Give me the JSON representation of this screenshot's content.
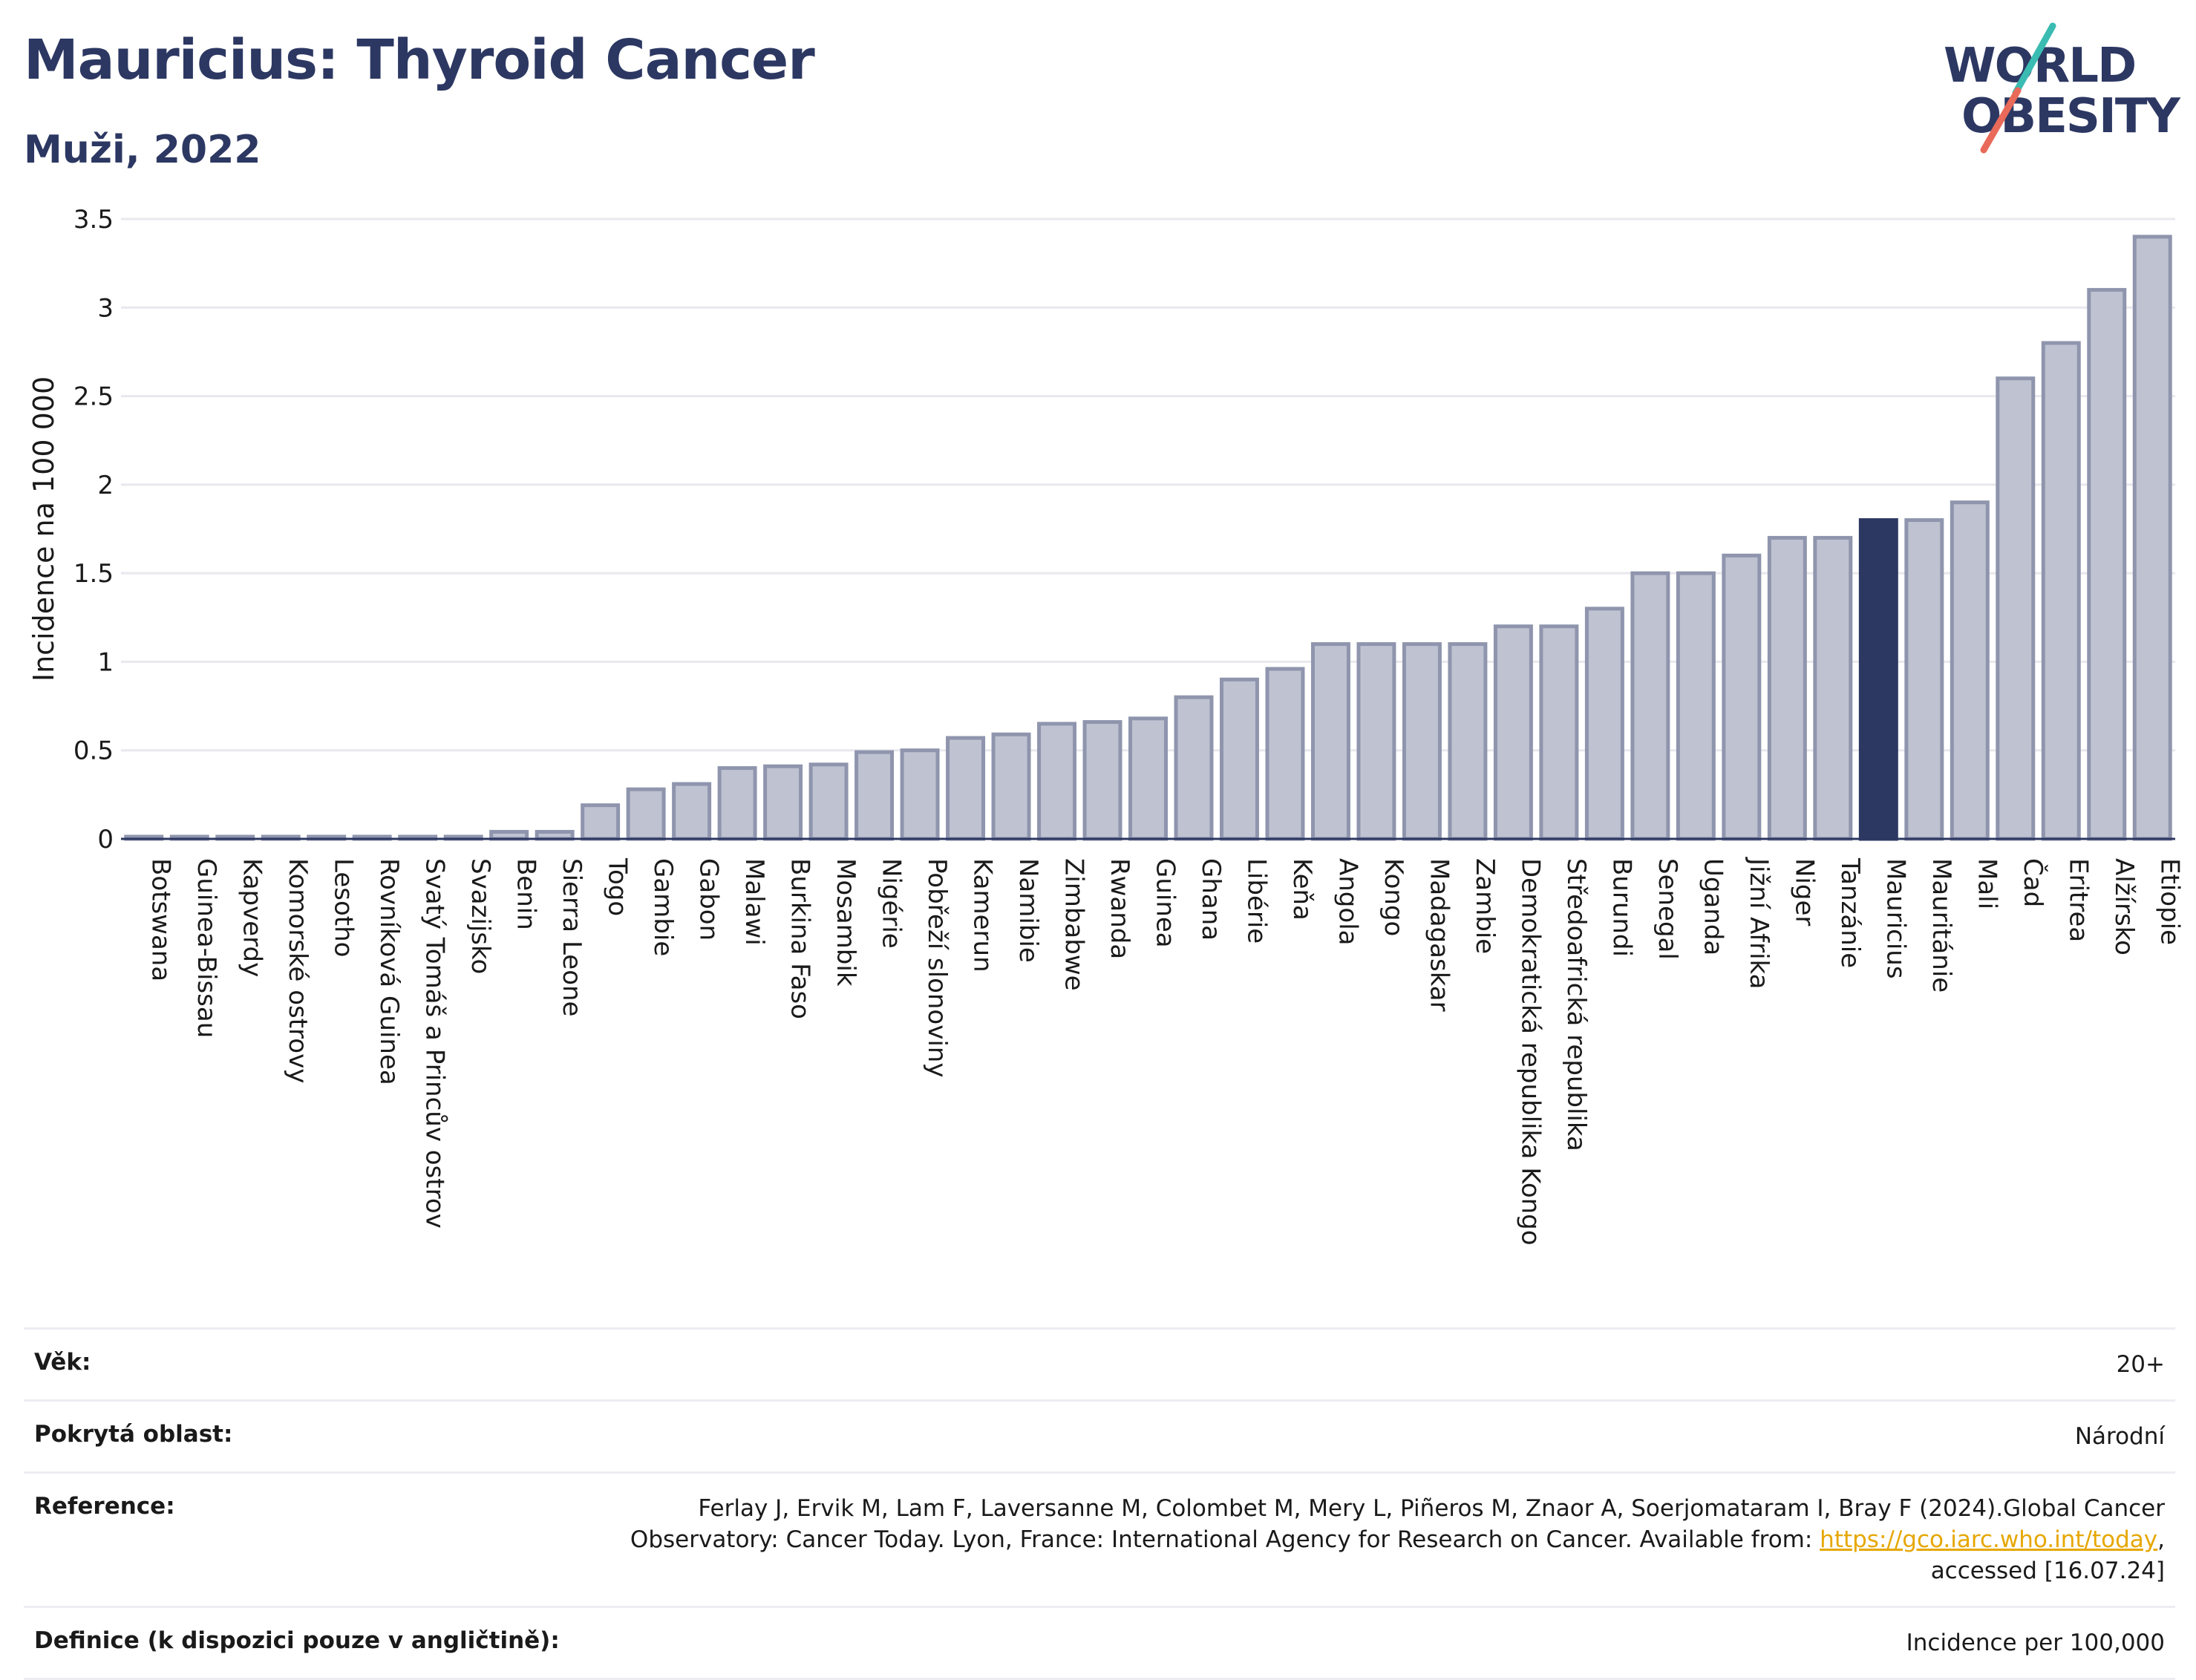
{
  "header": {
    "title": "Mauricius: Thyroid Cancer",
    "subtitle": "Muži, 2022"
  },
  "logo": {
    "line1": "WORLD",
    "line2": "OBESITY"
  },
  "chart_data": {
    "type": "bar",
    "ylabel": "Incidence na 100 000",
    "ylim": [
      0,
      3.5
    ],
    "yticks": [
      "0",
      "0.5",
      "1",
      "1.5",
      "2",
      "2.5",
      "3",
      "3.5"
    ],
    "ytick_values": [
      0,
      0.5,
      1,
      1.5,
      2,
      2.5,
      3,
      3.5
    ],
    "grid": true,
    "highlight": "Mauricius",
    "colors": {
      "bar": "#bec2d1",
      "bar_border": "#8f95ad",
      "highlight": "#2d3862",
      "grid": "#e8e8ee"
    },
    "categories": [
      "Botswana",
      "Guinea-Bissau",
      "Kapverdy",
      "Komorské ostrovy",
      "Lesotho",
      "Rovníková Guinea",
      "Svatý Tomáš a Princův ostrov",
      "Svazijsko",
      "Benin",
      "Sierra Leone",
      "Togo",
      "Gambie",
      "Gabon",
      "Malawi",
      "Burkina Faso",
      "Mosambik",
      "Nigérie",
      "Pobřeží slonoviny",
      "Kamerun",
      "Namibie",
      "Zimbabwe",
      "Rwanda",
      "Guinea",
      "Ghana",
      "Libérie",
      "Keňa",
      "Angola",
      "Kongo",
      "Madagaskar",
      "Zambie",
      "Demokratická republika Kongo",
      "Středoafrická republika",
      "Burundi",
      "Senegal",
      "Uganda",
      "Jižní Afrika",
      "Niger",
      "Tanzánie",
      "Mauricius",
      "Mauritánie",
      "Mali",
      "Čad",
      "Eritrea",
      "Alžírsko",
      "Etiopie"
    ],
    "values": [
      0.01,
      0.01,
      0.01,
      0.01,
      0.01,
      0.01,
      0.01,
      0.01,
      0.04,
      0.04,
      0.19,
      0.28,
      0.31,
      0.4,
      0.41,
      0.42,
      0.49,
      0.5,
      0.57,
      0.59,
      0.65,
      0.66,
      0.68,
      0.8,
      0.9,
      0.96,
      1.1,
      1.1,
      1.1,
      1.1,
      1.2,
      1.2,
      1.3,
      1.5,
      1.5,
      1.6,
      1.7,
      1.7,
      1.8,
      1.8,
      1.9,
      2.6,
      2.8,
      3.1,
      3.4
    ]
  },
  "info": {
    "rows": [
      {
        "label": "Věk:",
        "value": "20+"
      },
      {
        "label": "Pokrytá oblast:",
        "value": "Národní"
      },
      {
        "label": "Reference:",
        "value_pre": "Ferlay J, Ervik M, Lam F, Laversanne M, Colombet M, Mery L, Piñeros M, Znaor A, Soerjomataram I, Bray F (2024).Global Cancer Observatory: Cancer Today. Lyon, France: International Agency for Research on Cancer. Available from: ",
        "link": "https://gco.iarc.who.int/today",
        "value_post": ", accessed [16.07.24]"
      },
      {
        "label": "Definice (k dispozici pouze v angličtině):",
        "value": "Incidence per 100,000"
      }
    ]
  }
}
